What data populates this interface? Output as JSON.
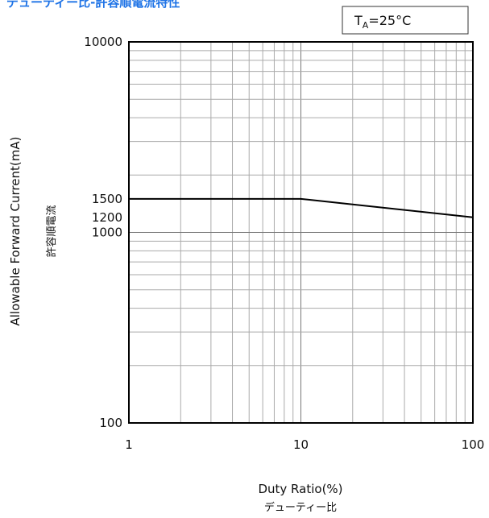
{
  "heading": "デューティー比-許容順電流特性",
  "condition": {
    "base": "T",
    "subscript": "A",
    "rest": "=25°C"
  },
  "chart_data": {
    "type": "line",
    "xscale": "log",
    "yscale": "log",
    "xlim": [
      1,
      100
    ],
    "ylim": [
      100,
      10000
    ],
    "xticks": [
      "1",
      "10",
      "100"
    ],
    "yticks": [
      "100",
      "1000",
      "1200",
      "1500",
      "10000"
    ],
    "xlabel": "Duty Ratio(%)",
    "xlabel_sub": "デューティー比",
    "ylabel": "Allowable Forward Current(mA)",
    "ylabel_sub": "許容順電流",
    "grid": true,
    "series": [
      {
        "x": [
          1,
          10,
          100
        ],
        "y": [
          1500,
          1500,
          1200
        ]
      }
    ]
  }
}
